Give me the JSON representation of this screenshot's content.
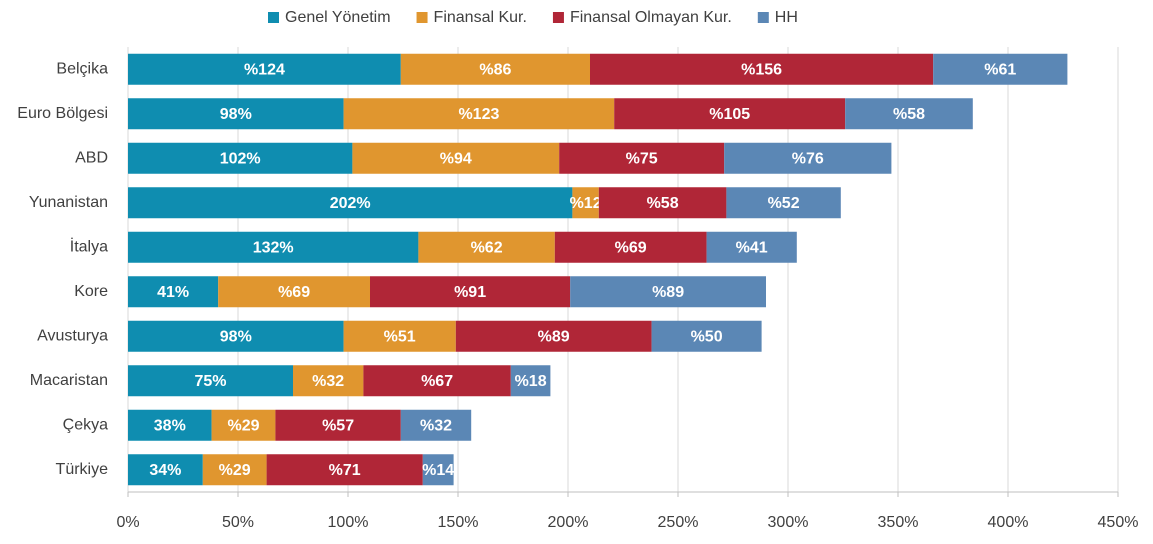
{
  "chart_data": {
    "type": "stacked_barh",
    "categories": [
      "Belçika",
      "Euro Bölgesi",
      "ABD",
      "Yunanistan",
      "İtalya",
      "Kore",
      "Avusturya",
      "Macaristan",
      "Çekya",
      "Türkiye"
    ],
    "series": [
      {
        "name": "Genel Yönetim",
        "color": "#0f8db0",
        "values": [
          124,
          98,
          102,
          202,
          132,
          41,
          98,
          75,
          38,
          34
        ],
        "value_labels": [
          "%124",
          "98%",
          "102%",
          "202%",
          "132%",
          "41%",
          "98%",
          "75%",
          "38%",
          "34%"
        ]
      },
      {
        "name": "Finansal Kur.",
        "color": "#e0962f",
        "values": [
          86,
          123,
          94,
          12,
          62,
          69,
          51,
          32,
          29,
          29
        ],
        "value_labels": [
          "%86",
          "%123",
          "%94",
          "%12",
          "%62",
          "%69",
          "%51",
          "%32",
          "%29",
          "%29"
        ]
      },
      {
        "name": "Finansal Olmayan Kur.",
        "color": "#b02637",
        "values": [
          156,
          105,
          75,
          58,
          69,
          91,
          89,
          67,
          57,
          71
        ],
        "value_labels": [
          "%156",
          "%105",
          "%75",
          "%58",
          "%69",
          "%91",
          "%89",
          "%67",
          "%57",
          "%71"
        ]
      },
      {
        "name": "HH",
        "color": "#5b87b5",
        "values": [
          61,
          58,
          76,
          52,
          41,
          89,
          50,
          18,
          32,
          14
        ],
        "value_labels": [
          "%61",
          "%58",
          "%76",
          "%52",
          "%41",
          "%89",
          "%50",
          "%18",
          "%32",
          "%14"
        ]
      }
    ],
    "xlim": [
      0,
      450
    ],
    "xticks": [
      {
        "value": 0,
        "label": "0%"
      },
      {
        "value": 50,
        "label": "50%"
      },
      {
        "value": 100,
        "label": "100%"
      },
      {
        "value": 150,
        "label": "150%"
      },
      {
        "value": 200,
        "label": "200%"
      },
      {
        "value": 250,
        "label": "250%"
      },
      {
        "value": 300,
        "label": "300%"
      },
      {
        "value": 350,
        "label": "350%"
      },
      {
        "value": 400,
        "label": "400%"
      },
      {
        "value": 450,
        "label": "450%"
      }
    ],
    "grid": true,
    "legend": "top"
  }
}
